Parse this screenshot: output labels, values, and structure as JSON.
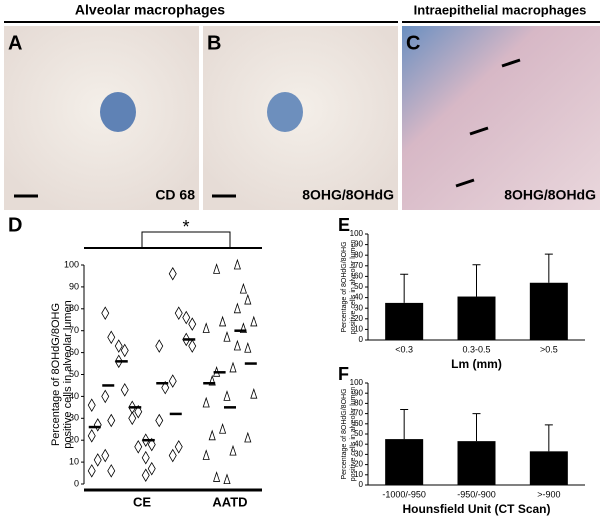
{
  "header": {
    "left_title": "Alveolar macrophages",
    "right_title": "Intraepithelial macrophages"
  },
  "panels": [
    {
      "label": "A",
      "caption": "CD 68"
    },
    {
      "label": "B",
      "caption": "8OHG/8OHdG"
    },
    {
      "label": "C",
      "caption": "8OHG/8OHdG"
    }
  ],
  "chart_data": [
    {
      "type": "dotplot",
      "panel": "D",
      "ylabel": [
        "Percentage of 8OHdG/8OHG",
        "positive cells in alveolar lumen"
      ],
      "ylim": [
        0,
        100
      ],
      "yticks": [
        0,
        10,
        20,
        30,
        40,
        50,
        60,
        70,
        80,
        90,
        100
      ],
      "annotation": "*",
      "groups": [
        {
          "name": "CE",
          "marker": "diamond",
          "columns": [
            {
              "values": [
                36,
                27,
                22,
                11,
                6
              ],
              "mean": 26
            },
            {
              "values": [
                78,
                67,
                40,
                29,
                13,
                6
              ],
              "mean": 45
            },
            {
              "values": [
                63,
                61,
                56,
                43
              ],
              "mean": 56
            },
            {
              "values": [
                35,
                33,
                30,
                17
              ],
              "mean": 35
            },
            {
              "values": [
                20,
                18,
                12,
                7,
                4
              ],
              "mean": 20
            },
            {
              "values": [
                63,
                44,
                29
              ],
              "mean": 46
            },
            {
              "values": [
                96,
                78,
                47,
                17,
                13
              ],
              "mean": 32
            },
            {
              "values": [
                76,
                73,
                66,
                63
              ],
              "mean": 66
            }
          ]
        },
        {
          "name": "AATD",
          "marker": "triangle",
          "columns": [
            {
              "values": [
                71,
                47,
                37,
                22,
                13
              ],
              "mean": 46
            },
            {
              "values": [
                98,
                74,
                51,
                25,
                3
              ],
              "mean": 51
            },
            {
              "values": [
                67,
                53,
                40,
                15,
                2
              ],
              "mean": 35
            },
            {
              "values": [
                100,
                89,
                80,
                71,
                63
              ],
              "mean": 70
            },
            {
              "values": [
                84,
                74,
                62,
                41,
                21
              ],
              "mean": 55
            }
          ]
        }
      ]
    },
    {
      "type": "bar",
      "panel": "E",
      "ylabel": [
        "Percentage of 8OHdG/8OHG",
        "positive cells in alveolar lumen"
      ],
      "xlabel": "Lm (mm)",
      "categories": [
        "<0.3",
        "0.3-0.5",
        ">0.5"
      ],
      "values": [
        35,
        41,
        54
      ],
      "errors": [
        27,
        30,
        27
      ],
      "color": "#000000",
      "ylim": [
        0,
        100
      ],
      "yticks": [
        0,
        10,
        20,
        30,
        40,
        50,
        60,
        70,
        80,
        90,
        100
      ]
    },
    {
      "type": "bar",
      "panel": "F",
      "ylabel": [
        "Percentage of 8OHdG/8OHG",
        "positive cells in alveolar lumen"
      ],
      "xlabel": "Hounsfield Unit (CT Scan)",
      "categories": [
        "-1000/-950",
        "-950/-900",
        ">-900"
      ],
      "values": [
        45,
        43,
        33
      ],
      "errors": [
        29,
        27,
        26
      ],
      "color": "#000000",
      "ylim": [
        0,
        100
      ],
      "yticks": [
        0,
        10,
        20,
        30,
        40,
        50,
        60,
        70,
        80,
        90,
        100
      ]
    }
  ]
}
